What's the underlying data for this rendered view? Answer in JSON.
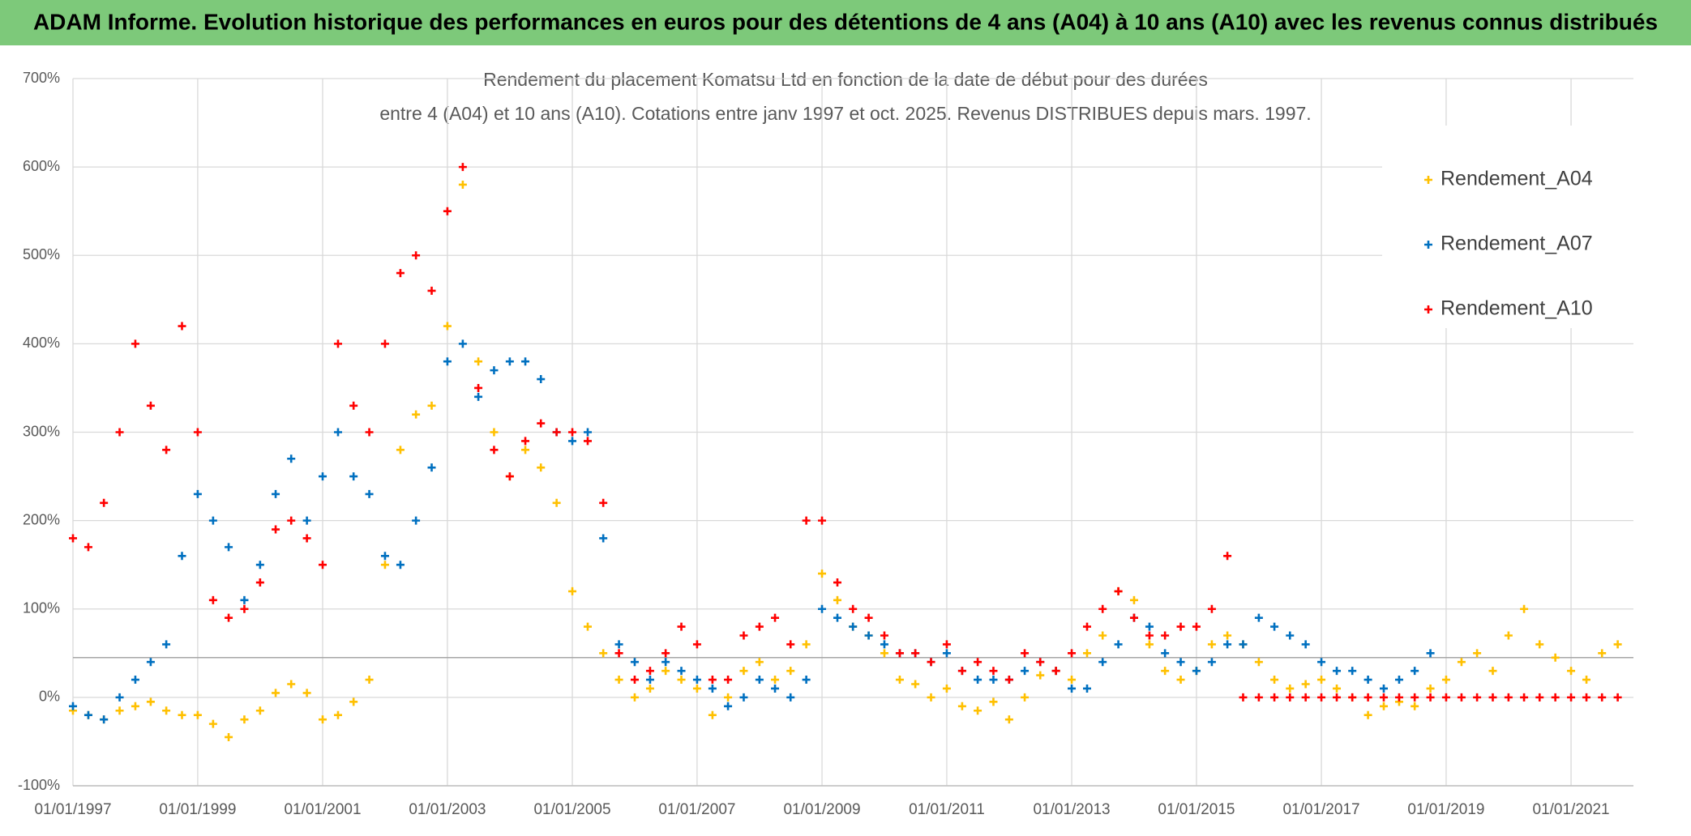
{
  "header": {
    "title": "ADAM Informe. Evolution historique des performances en euros pour des détentions de 4 ans (A04) à 10 ans (A10) avec les revenus connus distribués"
  },
  "chart_data": {
    "type": "scatter",
    "title": "Rendement du placement Komatsu Ltd en fonction de la date de début pour des durées",
    "subtitle": "entre 4 (A04) et 10 ans (A10). Cotations entre janv 1997 et oct. 2025. Revenus DISTRIBUES depuis mars. 1997.",
    "x": [
      "01/01/1997",
      "01/04/1997",
      "01/07/1997",
      "01/10/1997",
      "01/01/1998",
      "01/04/1998",
      "01/07/1998",
      "01/10/1998",
      "01/01/1999",
      "01/04/1999",
      "01/07/1999",
      "01/10/1999",
      "01/01/2000",
      "01/04/2000",
      "01/07/2000",
      "01/10/2000",
      "01/01/2001",
      "01/04/2001",
      "01/07/2001",
      "01/10/2001",
      "01/01/2002",
      "01/04/2002",
      "01/07/2002",
      "01/10/2002",
      "01/01/2003",
      "01/04/2003",
      "01/07/2003",
      "01/10/2003",
      "01/01/2004",
      "01/04/2004",
      "01/07/2004",
      "01/10/2004",
      "01/01/2005",
      "01/04/2005",
      "01/07/2005",
      "01/10/2005",
      "01/01/2006",
      "01/04/2006",
      "01/07/2006",
      "01/10/2006",
      "01/01/2007",
      "01/04/2007",
      "01/07/2007",
      "01/10/2007",
      "01/01/2008",
      "01/04/2008",
      "01/07/2008",
      "01/10/2008",
      "01/01/2009",
      "01/04/2009",
      "01/07/2009",
      "01/10/2009",
      "01/01/2010",
      "01/04/2010",
      "01/07/2010",
      "01/10/2010",
      "01/01/2011",
      "01/04/2011",
      "01/07/2011",
      "01/10/2011",
      "01/01/2012",
      "01/04/2012",
      "01/07/2012",
      "01/10/2012",
      "01/01/2013",
      "01/04/2013",
      "01/07/2013",
      "01/10/2013",
      "01/01/2014",
      "01/04/2014",
      "01/07/2014",
      "01/10/2014",
      "01/01/2015",
      "01/04/2015",
      "01/07/2015",
      "01/10/2015",
      "01/01/2016",
      "01/04/2016",
      "01/07/2016",
      "01/10/2016",
      "01/01/2017",
      "01/04/2017",
      "01/07/2017",
      "01/10/2017",
      "01/01/2018",
      "01/04/2018",
      "01/07/2018",
      "01/10/2018",
      "01/01/2019",
      "01/04/2019",
      "01/07/2019",
      "01/10/2019",
      "01/01/2020",
      "01/04/2020",
      "01/07/2020",
      "01/10/2020",
      "01/01/2021",
      "01/04/2021",
      "01/07/2021",
      "01/10/2021"
    ],
    "series": [
      {
        "name": "Rendement_A04",
        "color": "#ffc000",
        "values": [
          -15,
          -20,
          -25,
          -15,
          -10,
          -5,
          -15,
          -20,
          -20,
          -30,
          -45,
          -25,
          -15,
          5,
          15,
          5,
          -25,
          -20,
          -5,
          20,
          150,
          280,
          320,
          330,
          420,
          580,
          380,
          300,
          250,
          280,
          260,
          220,
          120,
          80,
          50,
          20,
          0,
          10,
          30,
          20,
          10,
          -20,
          0,
          30,
          40,
          20,
          30,
          60,
          140,
          110,
          80,
          70,
          50,
          20,
          15,
          0,
          10,
          -10,
          -15,
          -5,
          -25,
          0,
          25,
          30,
          20,
          50,
          70,
          120,
          110,
          60,
          30,
          20,
          30,
          60,
          70,
          60,
          40,
          20,
          10,
          15,
          20,
          10,
          0,
          -20,
          -10,
          -5,
          -10,
          10,
          20,
          40,
          50,
          30,
          70,
          100,
          60,
          45,
          30,
          20,
          50,
          60
        ]
      },
      {
        "name": "Rendement_A07",
        "color": "#0070c0",
        "values": [
          -10,
          -20,
          -25,
          0,
          20,
          40,
          60,
          160,
          230,
          200,
          170,
          110,
          150,
          230,
          270,
          200,
          250,
          300,
          250,
          230,
          160,
          150,
          200,
          260,
          380,
          400,
          340,
          370,
          380,
          380,
          360,
          300,
          290,
          300,
          180,
          60,
          40,
          20,
          40,
          30,
          20,
          10,
          -10,
          0,
          20,
          10,
          0,
          20,
          100,
          90,
          80,
          70,
          60,
          50,
          50,
          40,
          50,
          30,
          20,
          20,
          20,
          30,
          40,
          30,
          10,
          10,
          40,
          60,
          90,
          80,
          50,
          40,
          30,
          40,
          60,
          60,
          90,
          80,
          70,
          60,
          40,
          30,
          30,
          20,
          10,
          20,
          30,
          50,
          null,
          null,
          null,
          null,
          null,
          null,
          null,
          null,
          null,
          null,
          null,
          null
        ]
      },
      {
        "name": "Rendement_A10",
        "color": "#ff0000",
        "values": [
          180,
          170,
          220,
          300,
          400,
          330,
          280,
          420,
          300,
          110,
          90,
          100,
          130,
          190,
          200,
          180,
          150,
          400,
          330,
          300,
          400,
          480,
          500,
          460,
          550,
          600,
          350,
          280,
          250,
          290,
          310,
          300,
          300,
          290,
          220,
          50,
          20,
          30,
          50,
          80,
          60,
          20,
          20,
          70,
          80,
          90,
          60,
          200,
          200,
          130,
          100,
          90,
          70,
          50,
          50,
          40,
          60,
          30,
          40,
          30,
          20,
          50,
          40,
          30,
          50,
          80,
          100,
          120,
          90,
          70,
          70,
          80,
          80,
          100,
          160,
          0,
          0,
          0,
          0,
          0,
          0,
          0,
          0,
          0,
          0,
          0,
          0,
          0,
          0,
          0,
          0,
          0,
          0,
          0,
          0,
          0,
          0,
          0,
          0,
          0
        ]
      }
    ],
    "xlim": [
      "01/01/1997",
      "01/01/2022"
    ],
    "xticks": [
      "01/01/1997",
      "01/01/1999",
      "01/01/2001",
      "01/01/2003",
      "01/01/2005",
      "01/01/2007",
      "01/01/2009",
      "01/01/2011",
      "01/01/2013",
      "01/01/2015",
      "01/01/2017",
      "01/01/2019",
      "01/01/2021"
    ],
    "ylim": [
      -100,
      700
    ],
    "yticks": [
      {
        "value": -100,
        "label": "-100%"
      },
      {
        "value": 0,
        "label": "0%"
      },
      {
        "value": 100,
        "label": "100%"
      },
      {
        "value": 200,
        "label": "200%"
      },
      {
        "value": 300,
        "label": "300%"
      },
      {
        "value": 400,
        "label": "400%"
      },
      {
        "value": 500,
        "label": "500%"
      },
      {
        "value": 600,
        "label": "600%"
      },
      {
        "value": 700,
        "label": "700%"
      }
    ],
    "hline": 45,
    "grid": true,
    "legend": "top-right"
  }
}
